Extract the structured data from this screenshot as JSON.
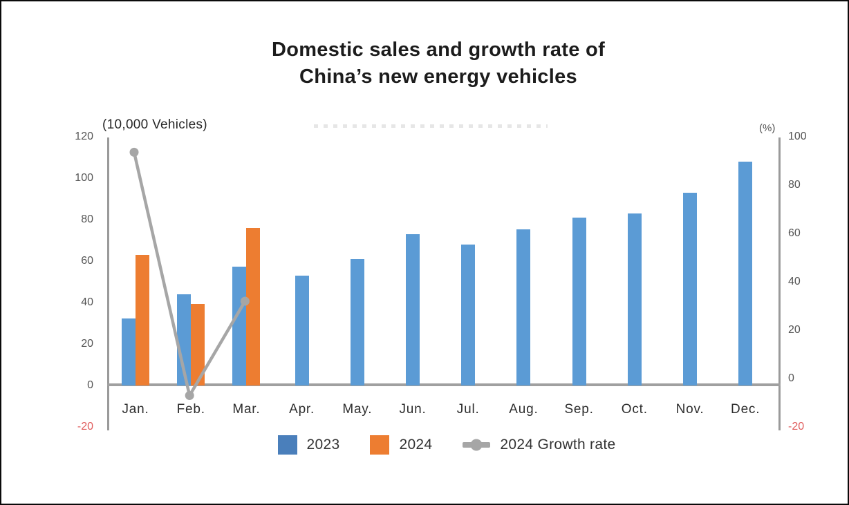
{
  "title": {
    "line1": "Domestic sales and growth rate of",
    "line2": "China’s new energy vehicles"
  },
  "axes": {
    "left_label": "(10,000 Vehicles)",
    "right_label": "(%)",
    "left_ticks": [
      120,
      100,
      80,
      60,
      40,
      20,
      0,
      -20
    ],
    "right_ticks": [
      100,
      80,
      60,
      40,
      20,
      0,
      -20
    ],
    "left_range": [
      -20,
      120
    ],
    "right_range": [
      -20,
      100
    ],
    "tick_color": "#545454",
    "negative_tick_color": "#e05c5c"
  },
  "chart_data": {
    "type": "bar",
    "title": "Domestic sales and growth rate of China’s new energy vehicles",
    "xlabel": "",
    "ylabel_left": "(10,000 Vehicles)",
    "ylabel_right": "(%)",
    "ylim_left": [
      -20,
      120
    ],
    "ylim_right": [
      -20,
      100
    ],
    "grid": false,
    "legend_position": "bottom",
    "categories": [
      "Jan.",
      "Feb.",
      "Mar.",
      "Apr.",
      "May.",
      "Jun.",
      "Jul.",
      "Aug.",
      "Sep.",
      "Oct.",
      "Nov.",
      "Dec."
    ],
    "series": [
      {
        "name": "2023",
        "type": "bar",
        "axis": "left",
        "color": "#5b9bd5",
        "values": [
          32.5,
          44,
          57.5,
          53,
          61,
          73,
          68,
          75.5,
          81,
          83,
          93,
          108
        ]
      },
      {
        "name": "2024",
        "type": "bar",
        "axis": "left",
        "color": "#ed7d31",
        "values": [
          63,
          39.5,
          76,
          null,
          null,
          null,
          null,
          null,
          null,
          null,
          null,
          null
        ]
      },
      {
        "name": "2024 Growth rate",
        "type": "line",
        "axis": "right",
        "color": "#a6a6a6",
        "values": [
          93.6,
          -7,
          32,
          null,
          null,
          null,
          null,
          null,
          null,
          null,
          null,
          null
        ]
      }
    ]
  },
  "legend": {
    "items": [
      {
        "label": "2023",
        "color": "#4a7fbb",
        "type": "square"
      },
      {
        "label": "2024",
        "color": "#ed7d31",
        "type": "square"
      },
      {
        "label": "2024 Growth rate",
        "color": "#a6a6a6",
        "type": "line"
      }
    ]
  }
}
